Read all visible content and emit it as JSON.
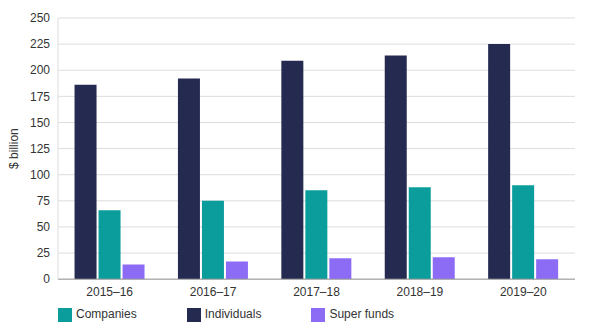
{
  "chart_data": {
    "type": "bar",
    "ylabel": "$ billion",
    "categories": [
      "2015–16",
      "2016–17",
      "2017–18",
      "2018–19",
      "2019–20"
    ],
    "series": [
      {
        "name": "Individuals",
        "color": "#252a50",
        "values": [
          186,
          192,
          209,
          214,
          225
        ]
      },
      {
        "name": "Companies",
        "color": "#0b9c9c",
        "values": [
          66,
          75,
          85,
          88,
          90
        ]
      },
      {
        "name": "Super funds",
        "color": "#8d6cf5",
        "values": [
          14,
          17,
          20,
          21,
          19
        ]
      }
    ],
    "ylim": [
      0,
      250
    ],
    "yticks": [
      0,
      25,
      50,
      75,
      100,
      125,
      150,
      175,
      200,
      225,
      250
    ],
    "grid": true,
    "legend": "bottom"
  }
}
